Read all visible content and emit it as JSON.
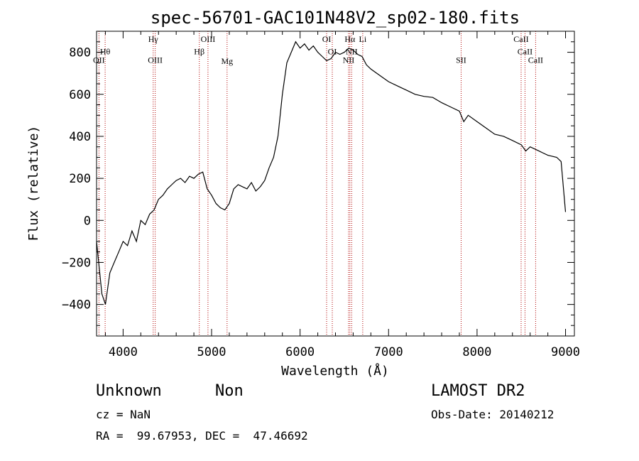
{
  "chart_data": {
    "type": "line",
    "title": "spec-56701-GAC101N48V2_sp02-180.fits",
    "xlabel": "Wavelength (Å)",
    "ylabel": "Flux (relative)",
    "xlim": [
      3700,
      9100
    ],
    "ylim": [
      -550,
      900
    ],
    "x_ticks": [
      4000,
      5000,
      6000,
      7000,
      8000,
      9000
    ],
    "x_tick_labels": [
      "4000",
      "5000",
      "6000",
      "7000",
      "8000",
      "9000"
    ],
    "y_ticks": [
      -400,
      -200,
      0,
      200,
      400,
      600,
      800
    ],
    "y_tick_labels": [
      "−400",
      "−200",
      "0",
      "200",
      "400",
      "600",
      "800"
    ],
    "grid": false,
    "line_color": "#000000",
    "line_marker_color": "#b00000",
    "series": [
      {
        "x": [
          3700,
          3760,
          3800,
          3850,
          3900,
          3950,
          4000,
          4050,
          4100,
          4150,
          4200,
          4250,
          4300,
          4350,
          4400,
          4450,
          4500,
          4550,
          4600,
          4650,
          4700,
          4750,
          4800,
          4850,
          4900,
          4950,
          5000,
          5050,
          5100,
          5150,
          5200,
          5250,
          5300,
          5350,
          5400,
          5450,
          5500,
          5550,
          5600,
          5650,
          5700,
          5750,
          5800,
          5850,
          5900,
          5950,
          6000,
          6050,
          6100,
          6150,
          6200,
          6250,
          6300,
          6350,
          6400,
          6450,
          6500,
          6550,
          6600,
          6650,
          6700,
          6750,
          6800,
          6900,
          7000,
          7100,
          7200,
          7300,
          7400,
          7500,
          7600,
          7700,
          7800,
          7850,
          7900,
          8000,
          8100,
          8200,
          8300,
          8400,
          8500,
          8550,
          8600,
          8700,
          8800,
          8900,
          8950,
          9000
        ],
        "values": [
          -100,
          -350,
          -400,
          -250,
          -200,
          -150,
          -100,
          -120,
          -50,
          -100,
          0,
          -20,
          30,
          50,
          100,
          120,
          150,
          170,
          190,
          200,
          180,
          210,
          200,
          220,
          230,
          150,
          120,
          80,
          60,
          50,
          80,
          150,
          170,
          160,
          150,
          180,
          140,
          160,
          190,
          250,
          300,
          400,
          600,
          750,
          800,
          850,
          820,
          840,
          810,
          830,
          800,
          780,
          760,
          770,
          800,
          790,
          800,
          820,
          810,
          790,
          780,
          740,
          720,
          690,
          660,
          640,
          620,
          600,
          590,
          585,
          560,
          540,
          520,
          470,
          500,
          470,
          440,
          410,
          400,
          380,
          360,
          330,
          350,
          330,
          310,
          300,
          280,
          40
        ]
      }
    ],
    "spectral_lines": [
      {
        "label": "OII",
        "x": 3727,
        "text_y": 750
      },
      {
        "label": "Hθ",
        "x": 3797,
        "text_y": 790
      },
      {
        "label": "Hγ",
        "x": 4340,
        "text_y": 850
      },
      {
        "label": "OIII",
        "x": 4363,
        "text_y": 750
      },
      {
        "label": "Hβ",
        "x": 4861,
        "text_y": 790
      },
      {
        "label": "OIII",
        "x": 4959,
        "text_y": 850
      },
      {
        "label": "Mg",
        "x": 5175,
        "text_y": 745
      },
      {
        "label": "OI",
        "x": 6300,
        "text_y": 850
      },
      {
        "label": "OI",
        "x": 6364,
        "text_y": 790
      },
      {
        "label": "NII",
        "x": 6548,
        "text_y": 750
      },
      {
        "label": "Hα",
        "x": 6563,
        "text_y": 850
      },
      {
        "label": "NII",
        "x": 6583,
        "text_y": 790
      },
      {
        "label": "Li",
        "x": 6708,
        "text_y": 850
      },
      {
        "label": "SII",
        "x": 7820,
        "text_y": 750
      },
      {
        "label": "CaII",
        "x": 8498,
        "text_y": 850
      },
      {
        "label": "CaII",
        "x": 8542,
        "text_y": 790
      },
      {
        "label": "CaII",
        "x": 8662,
        "text_y": 750
      }
    ]
  },
  "info": {
    "classification": "Unknown",
    "subclass": "Non",
    "cz": "cz = NaN",
    "radec": "RA =  99.67953, DEC =  47.46692",
    "survey": "LAMOST DR2",
    "obs_date": "Obs-Date: 20140212"
  }
}
